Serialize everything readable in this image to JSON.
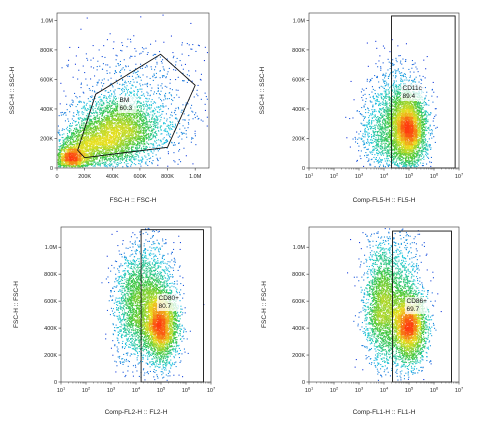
{
  "chart_data": [
    {
      "type": "scatter",
      "panel": "top-left",
      "xlabel": "FSC-H :: FSC-H",
      "ylabel": "SSC-H :: SSC-H",
      "x_scale": "linear",
      "y_scale": "linear",
      "xlim": [
        0,
        1100000
      ],
      "ylim": [
        0,
        1050000
      ],
      "x_ticks": [
        0,
        200000,
        400000,
        600000,
        800000,
        1000000
      ],
      "x_tick_labels": [
        "0",
        "200K",
        "400K",
        "600K",
        "800K",
        "1.0M"
      ],
      "y_ticks": [
        0,
        200000,
        400000,
        600000,
        800000,
        1000000
      ],
      "y_tick_labels": [
        "0",
        "200K",
        "400K",
        "600K",
        "800K",
        "1.0M"
      ],
      "gate": {
        "shape": "polygon",
        "name": "BM",
        "percent": "60.3",
        "vertices": [
          [
            150000,
            120000
          ],
          [
            280000,
            500000
          ],
          [
            750000,
            770000
          ],
          [
            1000000,
            560000
          ],
          [
            800000,
            140000
          ],
          [
            200000,
            70000
          ]
        ]
      },
      "populations": [
        {
          "cx": 440000,
          "cy": 250000,
          "sx": 160000,
          "sy": 110000,
          "n": 3200
        },
        {
          "cx": 230000,
          "cy": 140000,
          "sx": 120000,
          "sy": 70000,
          "n": 1200
        },
        {
          "cx": 100000,
          "cy": 60000,
          "sx": 70000,
          "sy": 45000,
          "n": 1100
        },
        {
          "cx": 600000,
          "cy": 430000,
          "sx": 260000,
          "sy": 230000,
          "n": 900
        }
      ]
    },
    {
      "type": "scatter",
      "panel": "top-right",
      "xlabel": "Comp-FL5-H :: FL5-H",
      "ylabel": "SSC-H :: SSC-H",
      "x_scale": "log",
      "y_scale": "linear",
      "xlim": [
        10,
        10000000
      ],
      "ylim": [
        0,
        1050000
      ],
      "x_ticks": [
        10,
        100,
        1000,
        10000,
        100000,
        1000000,
        10000000
      ],
      "x_tick_labels": [
        "10^1",
        "10^2",
        "10^3",
        "10^4",
        "10^5",
        "10^6",
        "10^7"
      ],
      "y_ticks": [
        0,
        200000,
        400000,
        600000,
        800000,
        1000000
      ],
      "y_tick_labels": [
        "0",
        "200K",
        "400K",
        "600K",
        "800K",
        "1.0M"
      ],
      "gate": {
        "shape": "rectangle",
        "name": "CD11c",
        "percent": "89.4",
        "x_range": [
          20000,
          7000000
        ],
        "y_range": [
          0,
          1030000
        ]
      },
      "populations": [
        {
          "cx_log": 5.0,
          "cy": 260000,
          "sx_log": 0.35,
          "sy": 130000,
          "n": 3400
        },
        {
          "cx_log": 4.4,
          "cy": 330000,
          "sx_log": 0.55,
          "sy": 180000,
          "n": 1300
        },
        {
          "cx_log": 3.8,
          "cy": 200000,
          "sx_log": 0.45,
          "sy": 110000,
          "n": 400
        }
      ]
    },
    {
      "type": "scatter",
      "panel": "bottom-left",
      "xlabel": "Comp-FL2-H :: FL2-H",
      "ylabel": "FSC-H :: FSC-H",
      "x_scale": "log",
      "y_scale": "linear",
      "xlim": [
        10,
        10000000
      ],
      "ylim": [
        0,
        1150000
      ],
      "x_ticks": [
        10,
        100,
        1000,
        10000,
        100000,
        1000000,
        10000000
      ],
      "x_tick_labels": [
        "10^1",
        "10^2",
        "10^3",
        "10^4",
        "10^5",
        "10^6",
        "10^7"
      ],
      "y_ticks": [
        0,
        200000,
        400000,
        600000,
        800000,
        1000000
      ],
      "y_tick_labels": [
        "0",
        "200K",
        "400K",
        "600K",
        "800K",
        "1.0M"
      ],
      "gate": {
        "shape": "rectangle",
        "name": "CD80+",
        "percent": "80.7",
        "x_range": [
          16000,
          5000000
        ],
        "y_range": [
          0,
          1130000
        ]
      },
      "populations": [
        {
          "cx_log": 5.0,
          "cy": 420000,
          "sx_log": 0.35,
          "sy": 140000,
          "n": 3000
        },
        {
          "cx_log": 4.0,
          "cy": 560000,
          "sx_log": 0.45,
          "sy": 200000,
          "n": 1700
        },
        {
          "cx_log": 4.6,
          "cy": 700000,
          "sx_log": 0.5,
          "sy": 200000,
          "n": 900
        }
      ]
    },
    {
      "type": "scatter",
      "panel": "bottom-right",
      "xlabel": "Comp-FL1-H :: FL1-H",
      "ylabel": "FSC-H :: FSC-H",
      "x_scale": "log",
      "y_scale": "linear",
      "xlim": [
        10,
        10000000
      ],
      "ylim": [
        0,
        1150000
      ],
      "x_ticks": [
        10,
        100,
        1000,
        10000,
        100000,
        1000000,
        10000000
      ],
      "x_tick_labels": [
        "10^1",
        "10^2",
        "10^3",
        "10^4",
        "10^5",
        "10^6",
        "10^7"
      ],
      "y_ticks": [
        0,
        200000,
        400000,
        600000,
        800000,
        1000000
      ],
      "y_tick_labels": [
        "0",
        "200K",
        "400K",
        "600K",
        "800K",
        "1.0M"
      ],
      "gate": {
        "shape": "rectangle",
        "name": "CD86+",
        "percent": "69.7",
        "x_range": [
          22000,
          5000000
        ],
        "y_range": [
          0,
          1120000
        ]
      },
      "populations": [
        {
          "cx_log": 5.0,
          "cy": 400000,
          "sx_log": 0.35,
          "sy": 140000,
          "n": 2800
        },
        {
          "cx_log": 3.9,
          "cy": 560000,
          "sx_log": 0.35,
          "sy": 220000,
          "n": 1800
        },
        {
          "cx_log": 4.5,
          "cy": 700000,
          "sx_log": 0.5,
          "sy": 220000,
          "n": 1000
        }
      ]
    }
  ],
  "colors": {
    "density_low": "#1a1adb",
    "density_mid1": "#20c8e0",
    "density_mid2": "#3ec63e",
    "density_mid3": "#e8e020",
    "density_high": "#ff3a10",
    "gate_stroke": "#111111",
    "axis": "#333333",
    "label_box": "#ffffff"
  }
}
